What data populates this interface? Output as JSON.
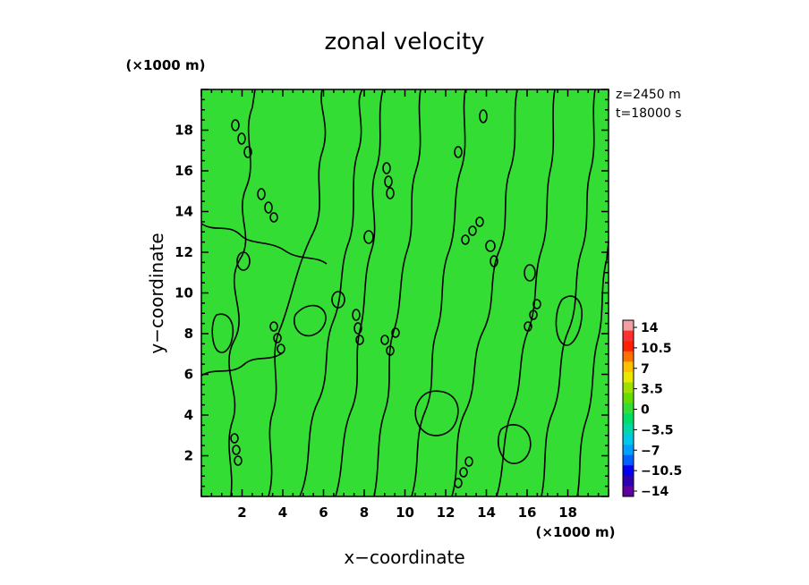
{
  "chart_data": {
    "type": "heatmap",
    "title": "zonal velocity",
    "xlabel": "x−coordinate",
    "ylabel": "y−coordinate",
    "x_unit": "(×1000 m)",
    "y_unit": "(×1000 m)",
    "xlim": [
      0,
      20
    ],
    "ylim": [
      0,
      20
    ],
    "xticks": [
      2,
      4,
      6,
      8,
      10,
      12,
      14,
      16,
      18
    ],
    "yticks": [
      2,
      4,
      6,
      8,
      10,
      12,
      14,
      16,
      18
    ],
    "annotations": [
      "z=2450 m",
      "t=18000 s"
    ],
    "field_value_approx": 0,
    "field_color": "#33dd33",
    "colorbar": {
      "labels": [
        "14",
        "10.5",
        "7",
        "3.5",
        "0",
        "−3.5",
        "−7",
        "−10.5",
        "−14"
      ],
      "colors": [
        "#f0a0a0",
        "#ff3030",
        "#ff2000",
        "#ff7000",
        "#ffc000",
        "#e8e800",
        "#a0e000",
        "#66dd00",
        "#33dd33",
        "#00dd66",
        "#00d8a8",
        "#00c8e8",
        "#00a0ff",
        "#0060ff",
        "#0000ee",
        "#3000b0",
        "#6000a0"
      ]
    }
  }
}
